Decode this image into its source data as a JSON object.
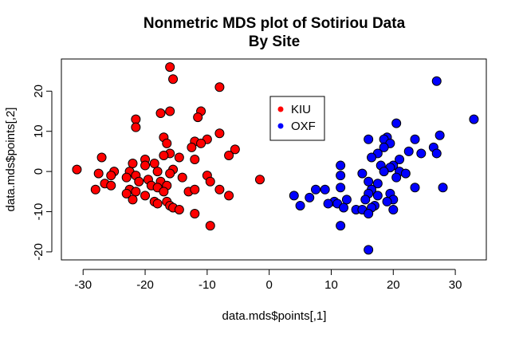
{
  "chart_data": {
    "type": "scatter",
    "title": "Nonmetric MDS plot of Sotiriou Data",
    "subtitle": "By Site",
    "xlabel": "data.mds$points[,1]",
    "ylabel": "data.mds$points[,2]",
    "xlim": [
      -33.5,
      35
    ],
    "ylim": [
      -22,
      28
    ],
    "xticks": [
      -30,
      -20,
      -10,
      0,
      10,
      20,
      30
    ],
    "yticks": [
      -20,
      -10,
      0,
      10,
      20
    ],
    "grid": false,
    "legend_position": "top-center",
    "series": [
      {
        "name": "KIU",
        "color": "#ff0000",
        "points": [
          [
            -16.0,
            26.0
          ],
          [
            -15.5,
            23.0
          ],
          [
            -8.0,
            21.0
          ],
          [
            -16.0,
            15.0
          ],
          [
            -11.0,
            15.0
          ],
          [
            -17.5,
            14.5
          ],
          [
            -21.5,
            13.0
          ],
          [
            -11.5,
            13.5
          ],
          [
            -21.5,
            11.0
          ],
          [
            -8.0,
            9.5
          ],
          [
            -17.0,
            8.5
          ],
          [
            -10.0,
            8.0
          ],
          [
            -12.0,
            7.5
          ],
          [
            -16.5,
            7.0
          ],
          [
            -11.0,
            7.0
          ],
          [
            -12.5,
            6.0
          ],
          [
            -5.5,
            5.5
          ],
          [
            -16.0,
            4.5
          ],
          [
            -17.0,
            4.0
          ],
          [
            -6.5,
            4.0
          ],
          [
            -27.0,
            3.5
          ],
          [
            -14.5,
            3.5
          ],
          [
            -20.0,
            3.0
          ],
          [
            -12.0,
            3.0
          ],
          [
            -22.0,
            2.0
          ],
          [
            -18.5,
            2.0
          ],
          [
            -20.0,
            1.5
          ],
          [
            -15.5,
            0.5
          ],
          [
            -31.0,
            0.5
          ],
          [
            -25.0,
            0.0
          ],
          [
            -22.5,
            0.0
          ],
          [
            -18.0,
            0.0
          ],
          [
            -27.5,
            -0.5
          ],
          [
            -16.0,
            -0.5
          ],
          [
            -25.5,
            -1.0
          ],
          [
            -21.5,
            -1.0
          ],
          [
            -23.0,
            -1.5
          ],
          [
            -10.0,
            -1.0
          ],
          [
            -14.0,
            -1.5
          ],
          [
            -19.5,
            -2.0
          ],
          [
            -21.0,
            -2.5
          ],
          [
            -17.5,
            -2.5
          ],
          [
            -1.5,
            -2.0
          ],
          [
            -9.5,
            -2.5
          ],
          [
            -26.5,
            -3.0
          ],
          [
            -25.5,
            -3.5
          ],
          [
            -19.0,
            -3.5
          ],
          [
            -16.5,
            -3.5
          ],
          [
            -28.0,
            -4.5
          ],
          [
            -22.5,
            -4.5
          ],
          [
            -18.0,
            -4.0
          ],
          [
            -8.0,
            -4.5
          ],
          [
            -21.5,
            -5.0
          ],
          [
            -17.0,
            -5.0
          ],
          [
            -13.0,
            -5.0
          ],
          [
            -12.0,
            -4.5
          ],
          [
            -23.0,
            -5.5
          ],
          [
            -20.0,
            -6.0
          ],
          [
            -6.5,
            -6.0
          ],
          [
            -22.0,
            -7.0
          ],
          [
            -18.5,
            -7.5
          ],
          [
            -16.5,
            -7.5
          ],
          [
            -18.0,
            -8.0
          ],
          [
            -16.0,
            -8.5
          ],
          [
            -15.5,
            -9.0
          ],
          [
            -14.5,
            -9.5
          ],
          [
            -12.0,
            -10.5
          ],
          [
            -9.5,
            -13.5
          ]
        ]
      },
      {
        "name": "OXF",
        "color": "#0000ff",
        "points": [
          [
            27.0,
            22.5
          ],
          [
            33.0,
            13.0
          ],
          [
            20.5,
            12.0
          ],
          [
            19.0,
            8.5
          ],
          [
            27.5,
            9.0
          ],
          [
            23.5,
            8.0
          ],
          [
            18.5,
            8.0
          ],
          [
            16.0,
            8.0
          ],
          [
            19.5,
            7.0
          ],
          [
            18.5,
            6.0
          ],
          [
            26.5,
            6.0
          ],
          [
            22.5,
            5.0
          ],
          [
            17.5,
            4.5
          ],
          [
            24.5,
            4.5
          ],
          [
            21.0,
            3.0
          ],
          [
            27.0,
            4.5
          ],
          [
            16.5,
            3.5
          ],
          [
            20.0,
            1.5
          ],
          [
            18.0,
            1.5
          ],
          [
            11.5,
            1.5
          ],
          [
            19.5,
            1.0
          ],
          [
            21.0,
            0.0
          ],
          [
            18.5,
            0.0
          ],
          [
            22.0,
            -0.5
          ],
          [
            15.0,
            -0.5
          ],
          [
            20.5,
            -1.5
          ],
          [
            11.5,
            -1.0
          ],
          [
            23.5,
            -4.0
          ],
          [
            28.0,
            -4.0
          ],
          [
            16.0,
            -2.5
          ],
          [
            17.5,
            -3.0
          ],
          [
            19.5,
            -5.5
          ],
          [
            11.5,
            -4.0
          ],
          [
            7.5,
            -4.5
          ],
          [
            9.0,
            -4.5
          ],
          [
            16.5,
            -4.5
          ],
          [
            4.0,
            -6.0
          ],
          [
            16.0,
            -5.5
          ],
          [
            17.5,
            -6.0
          ],
          [
            6.5,
            -6.5
          ],
          [
            15.5,
            -7.0
          ],
          [
            12.5,
            -7.0
          ],
          [
            10.5,
            -7.5
          ],
          [
            20.0,
            -7.0
          ],
          [
            11.0,
            -8.0
          ],
          [
            9.5,
            -8.0
          ],
          [
            5.0,
            -8.5
          ],
          [
            19.0,
            -7.5
          ],
          [
            17.0,
            -8.5
          ],
          [
            12.0,
            -9.0
          ],
          [
            14.0,
            -9.5
          ],
          [
            15.0,
            -9.5
          ],
          [
            16.5,
            -9.0
          ],
          [
            20.0,
            -9.5
          ],
          [
            16.0,
            -10.5
          ],
          [
            11.5,
            -13.5
          ],
          [
            16.0,
            -19.5
          ]
        ]
      }
    ],
    "legend": [
      {
        "label": "KIU",
        "color": "#ff0000"
      },
      {
        "label": "OXF",
        "color": "#0000ff"
      }
    ]
  }
}
